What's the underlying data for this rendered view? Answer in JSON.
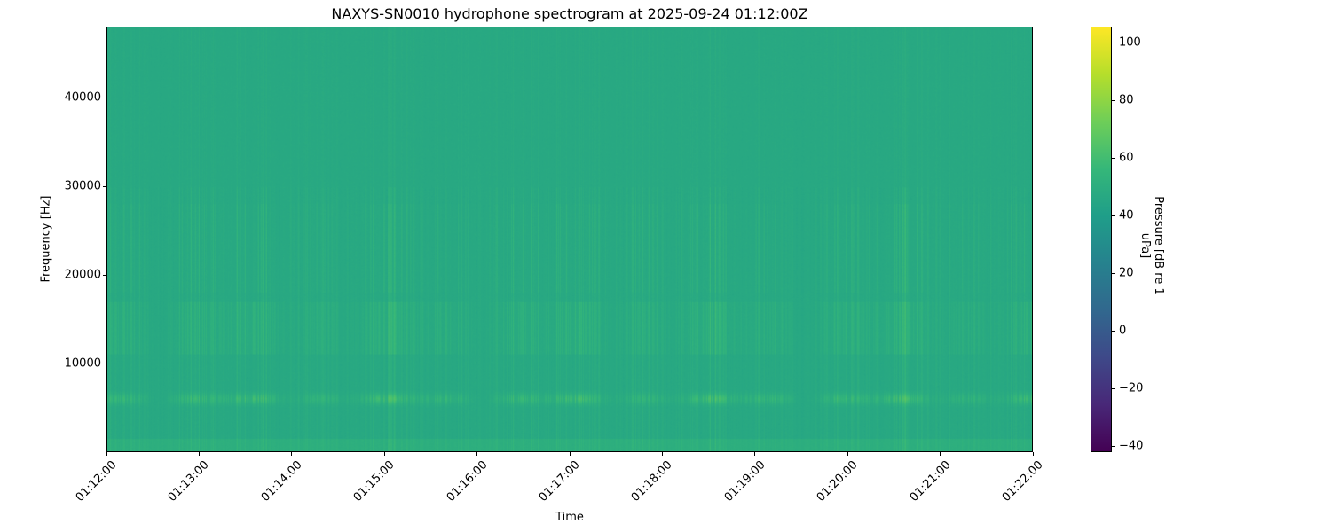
{
  "chart_data": {
    "type": "heatmap",
    "title": "NAXYS-SN0010 hydrophone spectrogram at 2025-09-24 01:12:00Z",
    "xlabel": "Time",
    "ylabel": "Frequency [Hz]",
    "x_ticks": [
      "01:12:00",
      "01:13:00",
      "01:14:00",
      "01:15:00",
      "01:16:00",
      "01:17:00",
      "01:18:00",
      "01:19:00",
      "01:20:00",
      "01:21:00",
      "01:22:00"
    ],
    "xlim": [
      "01:12:00",
      "01:22:00"
    ],
    "y_ticks": [
      10000,
      20000,
      30000,
      40000
    ],
    "y_tick_labels": [
      "10000",
      "20000",
      "30000",
      "40000"
    ],
    "ylim": [
      0,
      48000
    ],
    "colorbar": {
      "label": "Pressure [dB re 1 uPa]",
      "colormap": "viridis",
      "ticks": [
        100,
        80,
        60,
        40,
        20,
        0,
        -20,
        -40
      ],
      "tick_labels": [
        "100",
        "80",
        "60",
        "40",
        "20",
        "0",
        "−20",
        "−40"
      ],
      "clim": [
        -42,
        105.5
      ]
    },
    "grid": false
  }
}
